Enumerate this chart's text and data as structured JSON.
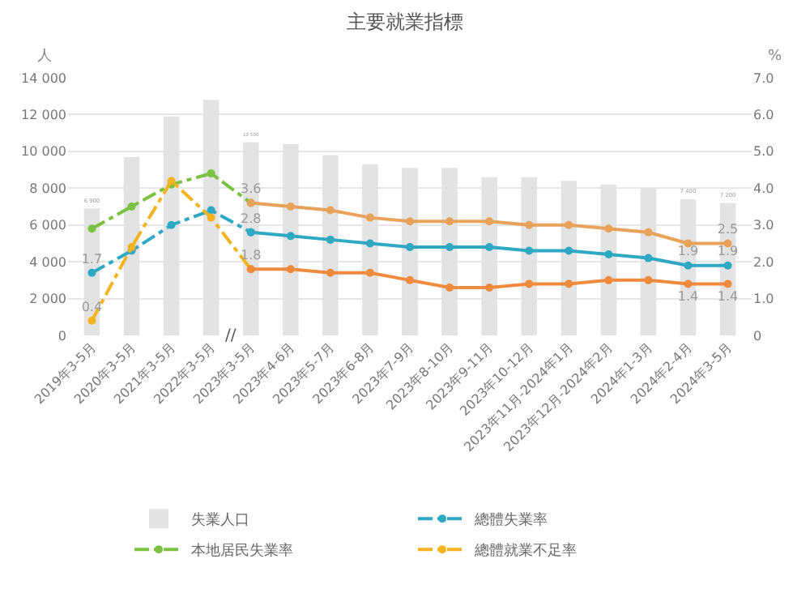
{
  "chart_data": {
    "type": "bar",
    "title": "主要就業指標",
    "ylabel": "人",
    "y2label": "%",
    "categories": [
      "2019年3-5月",
      "2020年3-5月",
      "2021年3-5月",
      "2022年3-5月",
      "2023年3-5月",
      "2023年4-6月",
      "2023年5-7月",
      "2023年6-8月",
      "2023年7-9月",
      "2023年8-10月",
      "2023年9-11月",
      "2023年10-12月",
      "2023年11月-2024年1月",
      "2023年12月-2024年2月",
      "2024年1-3月",
      "2024年2-4月",
      "2024年3-5月"
    ],
    "series": [
      {
        "name": "失業人口",
        "color": "#e3e3e3",
        "values": [
          6900,
          9700,
          11900,
          12800,
          10500,
          10400,
          9800,
          9300,
          9100,
          9100,
          8600,
          8600,
          8400,
          8200,
          8000,
          7400,
          7200
        ],
        "value_labels": [
          "6 900",
          null,
          null,
          null,
          "10 500",
          null,
          null,
          null,
          null,
          null,
          null,
          null,
          null,
          null,
          null,
          "7 400",
          "7 200"
        ]
      },
      {
        "name": "總體失業率",
        "type": "line",
        "axis": "y2",
        "color": "#2fa8c4",
        "line_style": "dashed",
        "values": [
          1.7,
          2.3,
          3.0,
          3.4,
          2.8,
          null,
          null,
          null,
          null,
          null,
          null,
          null,
          null,
          null,
          null,
          null,
          null
        ],
        "value_labels": [
          "1.7",
          null,
          null,
          null,
          "2.8",
          null,
          null,
          null,
          null,
          null,
          null,
          null,
          null,
          null,
          null,
          null,
          null
        ]
      },
      {
        "type": "line",
        "axis": "y2",
        "color": "#2fa8c4",
        "line_style": "solid",
        "values": [
          null,
          null,
          null,
          null,
          2.8,
          2.7,
          2.6,
          2.5,
          2.4,
          2.4,
          2.4,
          2.3,
          2.3,
          2.2,
          2.1,
          1.9,
          1.9
        ],
        "value_labels": [
          null,
          null,
          null,
          null,
          null,
          null,
          null,
          null,
          null,
          null,
          null,
          null,
          null,
          null,
          null,
          "1.9",
          "1.9"
        ]
      },
      {
        "name": "本地居民失業率",
        "type": "line",
        "axis": "y2",
        "color": "#7cc242",
        "line_style": "dashed",
        "values": [
          2.9,
          3.5,
          4.1,
          4.4,
          3.6,
          null,
          null,
          null,
          null,
          null,
          null,
          null,
          null,
          null,
          null,
          null,
          null
        ],
        "value_labels": [
          null,
          null,
          null,
          null,
          "3.6",
          null,
          null,
          null,
          null,
          null,
          null,
          null,
          null,
          null,
          null,
          null,
          null
        ]
      },
      {
        "type": "line",
        "axis": "y2",
        "color": "#e8a25a",
        "line_style": "solid",
        "values": [
          null,
          null,
          null,
          null,
          3.6,
          3.5,
          3.4,
          3.2,
          3.1,
          3.1,
          3.1,
          3.0,
          3.0,
          2.9,
          2.8,
          2.5,
          2.5
        ],
        "value_labels": [
          null,
          null,
          null,
          null,
          null,
          null,
          null,
          null,
          null,
          null,
          null,
          null,
          null,
          null,
          null,
          null,
          "2.5"
        ]
      },
      {
        "name": "總體就業不足率",
        "type": "line",
        "axis": "y2",
        "color": "#f5b321",
        "line_style": "dashed",
        "values": [
          0.4,
          2.4,
          4.2,
          3.2,
          1.8,
          null,
          null,
          null,
          null,
          null,
          null,
          null,
          null,
          null,
          null,
          null,
          null
        ],
        "value_labels": [
          "0.4",
          null,
          null,
          null,
          "1.8",
          null,
          null,
          null,
          null,
          null,
          null,
          null,
          null,
          null,
          null,
          null,
          null
        ]
      },
      {
        "type": "line",
        "axis": "y2",
        "color": "#f08a3c",
        "line_style": "solid",
        "values": [
          null,
          null,
          null,
          null,
          1.8,
          1.8,
          1.7,
          1.7,
          1.5,
          1.3,
          1.3,
          1.4,
          1.4,
          1.5,
          1.5,
          1.4,
          1.4
        ],
        "value_labels": [
          null,
          null,
          null,
          null,
          null,
          null,
          null,
          null,
          null,
          null,
          null,
          null,
          null,
          null,
          null,
          "1.4",
          "1.4"
        ]
      }
    ],
    "ylim": [
      0,
      14000
    ],
    "yticks": [
      {
        "value": 0,
        "label": "0"
      },
      {
        "value": 2000,
        "label": "2 000"
      },
      {
        "value": 4000,
        "label": "4 000"
      },
      {
        "value": 6000,
        "label": "6 000"
      },
      {
        "value": 8000,
        "label": "8 000"
      },
      {
        "value": 10000,
        "label": "10 000"
      },
      {
        "value": 12000,
        "label": "12 000"
      },
      {
        "value": 14000,
        "label": "14 000"
      }
    ],
    "y2lim": [
      0,
      7
    ],
    "y2ticks": [
      {
        "value": 0,
        "label": "0"
      },
      {
        "value": 1,
        "label": "1.0"
      },
      {
        "value": 2,
        "label": "2.0"
      },
      {
        "value": 3,
        "label": "3.0"
      },
      {
        "value": 4,
        "label": "4.0"
      },
      {
        "value": 5,
        "label": "5.0"
      },
      {
        "value": 6,
        "label": "6.0"
      },
      {
        "value": 7,
        "label": "7.0"
      }
    ],
    "grid": "y",
    "legend": "bottom",
    "marker": "circle",
    "annotations": [
      {
        "text": "//",
        "x": "2022年3-5月"
      }
    ]
  }
}
